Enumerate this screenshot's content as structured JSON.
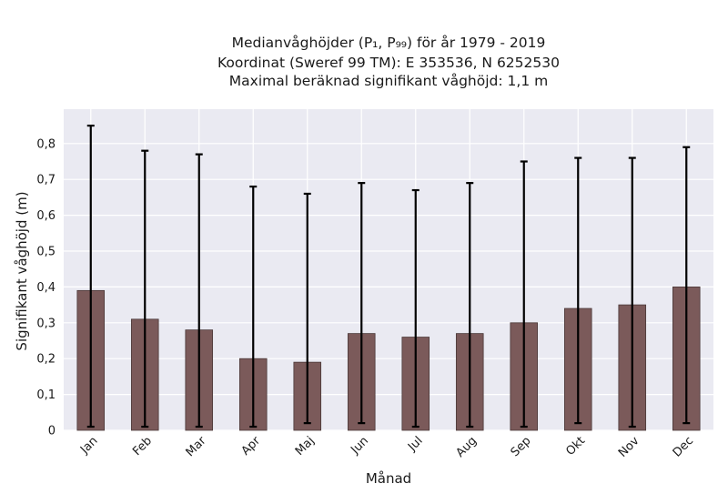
{
  "chart_data": {
    "type": "bar",
    "title_lines": [
      "Medianvåghöjder (P₁, P₉₉) för år 1979 - 2019",
      "Koordinat (Sweref 99 TM): E 353536, N 6252530",
      "Maximal beräknad signifikant våghöjd: 1,1 m"
    ],
    "xlabel": "Månad",
    "ylabel": "Signifikant våghöjd (m)",
    "categories": [
      "Jan",
      "Feb",
      "Mar",
      "Apr",
      "Maj",
      "Jun",
      "Jul",
      "Aug",
      "Sep",
      "Okt",
      "Nov",
      "Dec"
    ],
    "values": [
      0.39,
      0.31,
      0.28,
      0.2,
      0.19,
      0.27,
      0.26,
      0.27,
      0.3,
      0.34,
      0.35,
      0.4
    ],
    "p1": [
      0.01,
      0.01,
      0.01,
      0.01,
      0.02,
      0.02,
      0.01,
      0.01,
      0.01,
      0.02,
      0.01,
      0.02
    ],
    "p99": [
      0.85,
      0.78,
      0.77,
      0.68,
      0.66,
      0.69,
      0.67,
      0.69,
      0.75,
      0.76,
      0.76,
      0.79
    ],
    "ylim": [
      0,
      0.8
    ],
    "yticks": [
      0,
      0.1,
      0.2,
      0.3,
      0.4,
      0.5,
      0.6,
      0.7,
      0.8
    ],
    "ytick_labels": [
      "0",
      "0,1",
      "0,2",
      "0,3",
      "0,4",
      "0,5",
      "0,6",
      "0,7",
      "0,8"
    ],
    "grid": true,
    "colors": {
      "bar": "#7b5a5a",
      "bar_edge": "#4a3838",
      "errorbar": "#000000",
      "plot_bg": "#eaeaf2",
      "grid": "#ffffff"
    }
  }
}
